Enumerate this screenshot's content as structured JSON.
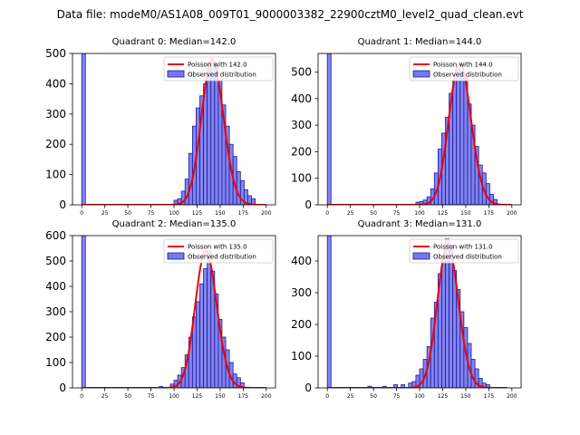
{
  "figure": {
    "suptitle": "Data file: modeM0/AS1A08_009T01_9000003382_22900cztM0_level2_quad_clean.evt"
  },
  "colors": {
    "bar_fill": "#7777ee",
    "bar_edge": "#1a1a99",
    "poisson_line": "#ee0000",
    "axis": "#000000"
  },
  "chart_data": [
    {
      "type": "bar",
      "title": "Quadrant 0: Median=142.0",
      "xlim": [
        -10,
        210
      ],
      "ylim": [
        0,
        500
      ],
      "xticks": [
        0,
        25,
        50,
        75,
        100,
        125,
        150,
        175,
        200
      ],
      "yticks": [
        0,
        100,
        200,
        300,
        400,
        500
      ],
      "bin_width": 4,
      "bins": [
        [
          0,
          500
        ],
        [
          100,
          15
        ],
        [
          104,
          20
        ],
        [
          108,
          45
        ],
        [
          112,
          85
        ],
        [
          116,
          170
        ],
        [
          120,
          260
        ],
        [
          124,
          320
        ],
        [
          128,
          360
        ],
        [
          132,
          400
        ],
        [
          136,
          450
        ],
        [
          140,
          470
        ],
        [
          144,
          460
        ],
        [
          148,
          410
        ],
        [
          152,
          330
        ],
        [
          156,
          260
        ],
        [
          160,
          200
        ],
        [
          164,
          160
        ],
        [
          168,
          110
        ],
        [
          172,
          80
        ],
        [
          176,
          50
        ],
        [
          180,
          30
        ],
        [
          184,
          20
        ]
      ],
      "poisson": {
        "mean": 142.0,
        "peak": 480,
        "xrange": [
          0,
          200
        ]
      },
      "legend": [
        "Poisson with 142.0",
        "Observed distribution"
      ]
    },
    {
      "type": "bar",
      "title": "Quadrant 1: Median=144.0",
      "xlim": [
        -10,
        210
      ],
      "ylim": [
        0,
        570
      ],
      "xticks": [
        0,
        25,
        50,
        75,
        100,
        125,
        150,
        175,
        200
      ],
      "yticks": [
        0,
        100,
        200,
        300,
        400,
        500
      ],
      "bin_width": 4,
      "bins": [
        [
          0,
          570
        ],
        [
          96,
          10
        ],
        [
          100,
          12
        ],
        [
          104,
          18
        ],
        [
          108,
          30
        ],
        [
          112,
          60
        ],
        [
          116,
          120
        ],
        [
          120,
          210
        ],
        [
          124,
          270
        ],
        [
          128,
          330
        ],
        [
          132,
          420
        ],
        [
          136,
          470
        ],
        [
          140,
          510
        ],
        [
          144,
          530
        ],
        [
          148,
          480
        ],
        [
          152,
          380
        ],
        [
          156,
          300
        ],
        [
          160,
          220
        ],
        [
          164,
          150
        ],
        [
          168,
          120
        ],
        [
          172,
          80
        ],
        [
          176,
          40
        ],
        [
          180,
          20
        ]
      ],
      "poisson": {
        "mean": 144.0,
        "peak": 535,
        "xrange": [
          0,
          200
        ]
      },
      "legend": [
        "Poisson with 144.0",
        "Observed distribution"
      ]
    },
    {
      "type": "bar",
      "title": "Quadrant 2: Median=135.0",
      "xlim": [
        -10,
        210
      ],
      "ylim": [
        0,
        600
      ],
      "xticks": [
        0,
        25,
        50,
        75,
        100,
        125,
        150,
        175,
        200
      ],
      "yticks": [
        0,
        100,
        200,
        300,
        400,
        500,
        600
      ],
      "bin_width": 4,
      "bins": [
        [
          0,
          600
        ],
        [
          84,
          5
        ],
        [
          96,
          15
        ],
        [
          100,
          30
        ],
        [
          104,
          50
        ],
        [
          108,
          80
        ],
        [
          112,
          130
        ],
        [
          116,
          200
        ],
        [
          120,
          280
        ],
        [
          124,
          340
        ],
        [
          128,
          410
        ],
        [
          132,
          470
        ],
        [
          136,
          540
        ],
        [
          140,
          460
        ],
        [
          144,
          370
        ],
        [
          148,
          270
        ],
        [
          152,
          200
        ],
        [
          156,
          150
        ],
        [
          160,
          100
        ],
        [
          164,
          55
        ],
        [
          168,
          40
        ],
        [
          172,
          20
        ]
      ],
      "poisson": {
        "mean": 135.0,
        "peak": 540,
        "xrange": [
          0,
          200
        ]
      },
      "legend": [
        "Poisson with 135.0",
        "Observed distribution"
      ]
    },
    {
      "type": "bar",
      "title": "Quadrant 3: Median=131.0",
      "xlim": [
        -10,
        210
      ],
      "ylim": [
        0,
        480
      ],
      "xticks": [
        0,
        25,
        50,
        75,
        100,
        125,
        150,
        175,
        200
      ],
      "yticks": [
        0,
        100,
        200,
        300,
        400
      ],
      "bin_width": 4,
      "bins": [
        [
          0,
          480
        ],
        [
          44,
          5
        ],
        [
          60,
          5
        ],
        [
          72,
          10
        ],
        [
          80,
          10
        ],
        [
          88,
          15
        ],
        [
          92,
          20
        ],
        [
          96,
          40
        ],
        [
          100,
          60
        ],
        [
          104,
          90
        ],
        [
          108,
          130
        ],
        [
          112,
          220
        ],
        [
          116,
          270
        ],
        [
          120,
          360
        ],
        [
          124,
          400
        ],
        [
          128,
          470
        ],
        [
          132,
          450
        ],
        [
          136,
          370
        ],
        [
          140,
          310
        ],
        [
          144,
          240
        ],
        [
          148,
          190
        ],
        [
          152,
          140
        ],
        [
          156,
          90
        ],
        [
          160,
          60
        ],
        [
          164,
          30
        ],
        [
          168,
          15
        ],
        [
          172,
          10
        ]
      ],
      "poisson": {
        "mean": 131.0,
        "peak": 450,
        "xrange": [
          0,
          195
        ]
      },
      "legend": [
        "Poisson with 131.0",
        "Observed distribution"
      ]
    }
  ]
}
